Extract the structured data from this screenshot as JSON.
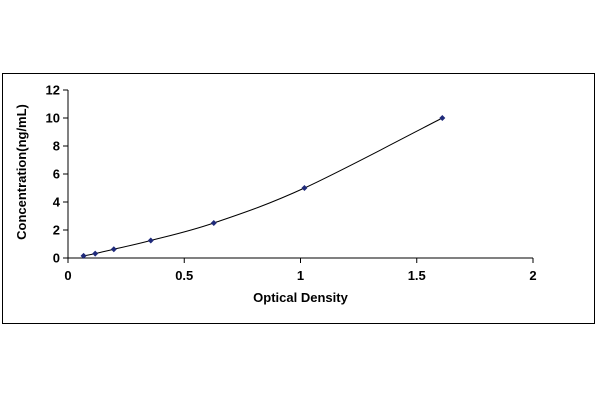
{
  "chart_data": {
    "type": "scatter",
    "xlabel": "Optical Density",
    "ylabel": "Concentration(ng/mL)",
    "xlim": [
      0,
      2
    ],
    "ylim": [
      0,
      12
    ],
    "x_ticks": [
      "0",
      "0.5",
      "1",
      "1.5",
      "2"
    ],
    "y_ticks": [
      "0",
      "2",
      "4",
      "6",
      "8",
      "10",
      "12"
    ],
    "grid": false,
    "legend": "none",
    "colors": {
      "marker": "#1f2a7a",
      "curve": "#000000"
    },
    "series": [
      {
        "x": [
          0.067,
          0.117,
          0.197,
          0.356,
          0.627,
          1.017,
          1.61
        ],
        "y": [
          0.156,
          0.313,
          0.625,
          1.25,
          2.5,
          5.0,
          10.0
        ]
      }
    ]
  }
}
